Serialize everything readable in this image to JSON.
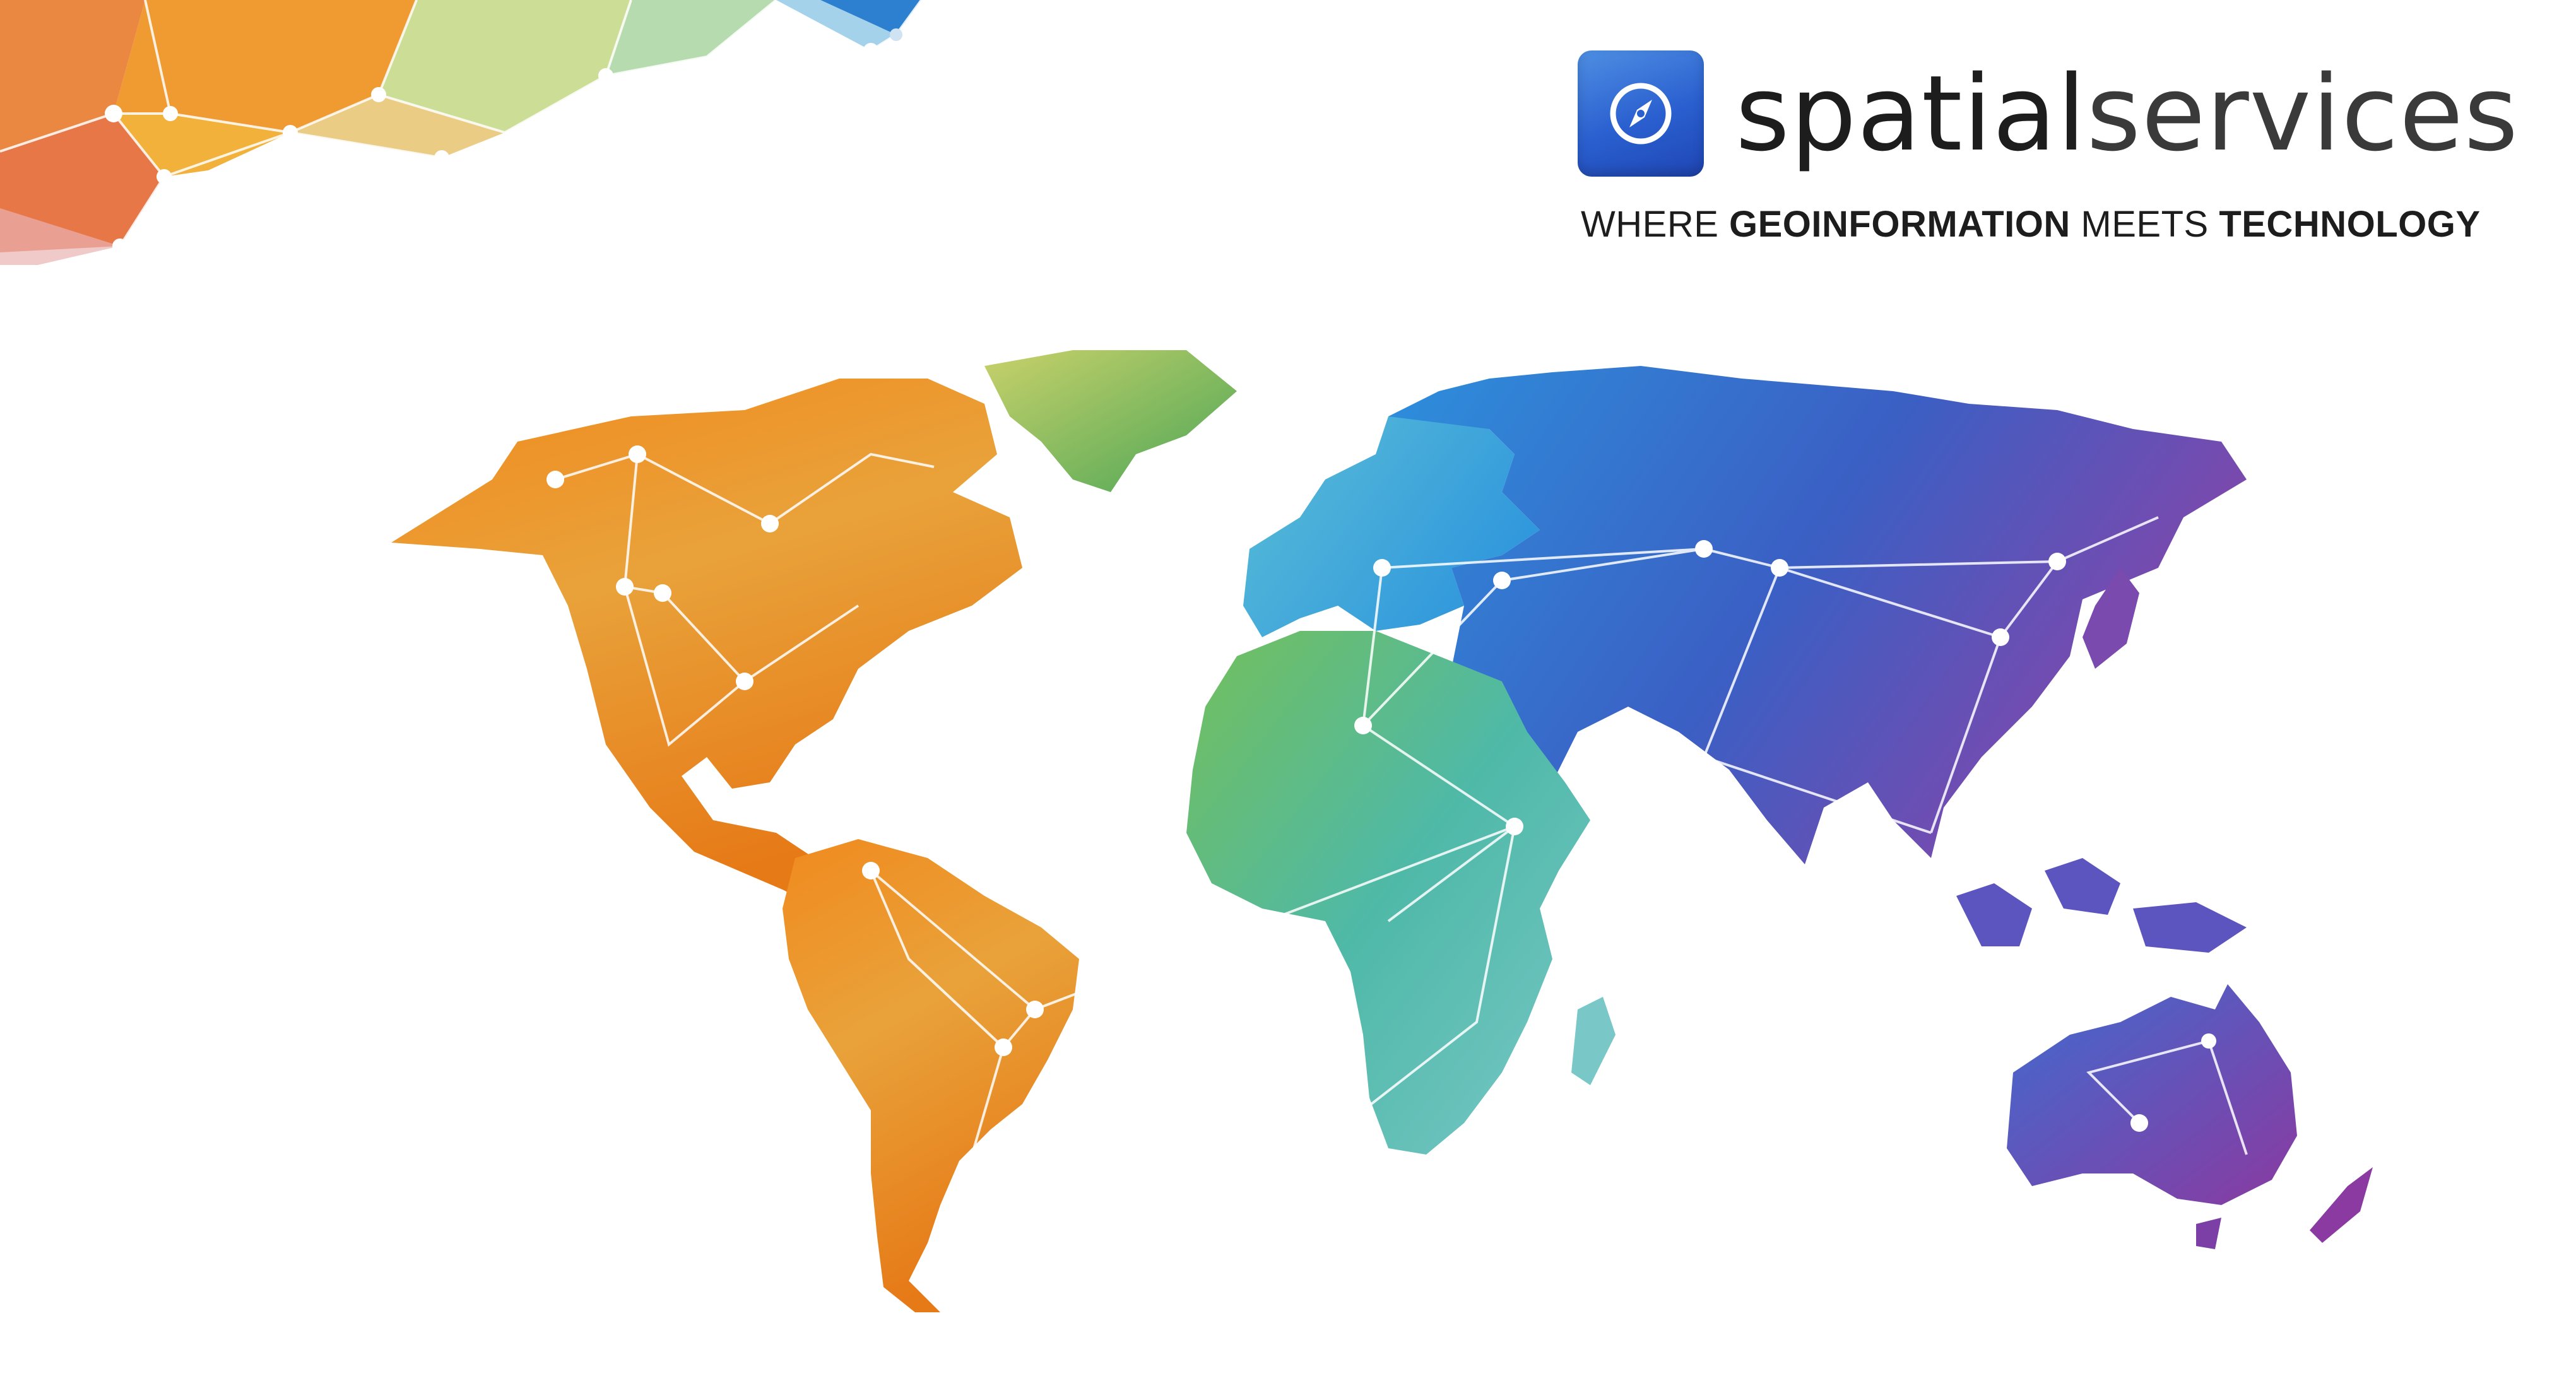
{
  "logo": {
    "word_primary": "spatial",
    "word_secondary": "services",
    "icon": "compass-icon",
    "badge_color": "#2f6fd8"
  },
  "tagline": {
    "part1": "WHERE ",
    "part2": "GEOINFORMATION",
    "part3": " MEETS ",
    "part4": "TECHNOLOGY"
  },
  "palette": {
    "americas": "#e87d1e",
    "greenland": "#6fb24a",
    "africa": "#52b9a6",
    "europe": "#3fa6d9",
    "asia": "#3a69c8",
    "east_asia": "#7a4bb3",
    "australia": "#5b4bb5"
  }
}
